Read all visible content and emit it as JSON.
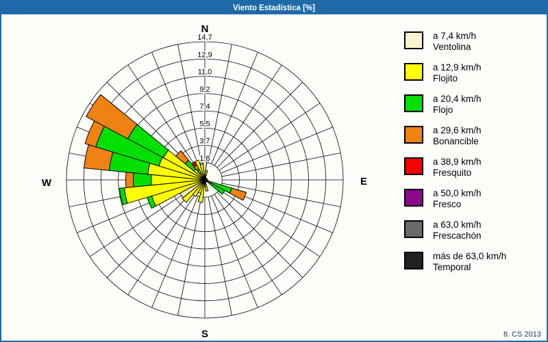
{
  "window": {
    "title": "Viento Estadística [%]"
  },
  "footer": {
    "credit": "8. CS 2013"
  },
  "legend": {
    "entries": [
      {
        "speed": "a 7,4 km/h",
        "name": "Ventolina",
        "color": "#FBF3D0"
      },
      {
        "speed": "a 12,9 km/h",
        "name": "Flojito",
        "color": "#FFFF00"
      },
      {
        "speed": "a 20,4 km/h",
        "name": "Flojo",
        "color": "#00E000"
      },
      {
        "speed": "a 29,6 km/h",
        "name": "Bonancible",
        "color": "#F08214"
      },
      {
        "speed": "a 38,9 km/h",
        "name": "Fresquito",
        "color": "#F80000"
      },
      {
        "speed": "a 50,0 km/h",
        "name": "Fresco",
        "color": "#8B0A8B"
      },
      {
        "speed": "a 63,0 km/h",
        "name": "Frescachón",
        "color": "#6A6A6A"
      },
      {
        "speed": "más de 63,0 km/h",
        "name": "Temporal",
        "color": "#212121"
      }
    ]
  },
  "chart_data": {
    "type": "wind_rose",
    "title": "Viento Estadística [%]",
    "units": "%",
    "sectors": 32,
    "sector_width_deg": 11.25,
    "grid": {
      "rings": 8,
      "ring_max": 14.7,
      "ring_labels": [
        "1,8",
        "3,7",
        "5,5",
        "7,4",
        "9,2",
        "11,0",
        "12,9",
        "14,7"
      ]
    },
    "compass": {
      "north": "N",
      "east": "E",
      "south": "S",
      "west": "W"
    },
    "speed_bins": [
      "ventolina",
      "flojito",
      "flojo",
      "bonancible",
      "fresquito",
      "fresco",
      "frescachon",
      "temporal"
    ],
    "bin_colors": {
      "ventolina": "#FBF3D0",
      "flojito": "#FFFF00",
      "flojo": "#00E000",
      "bonancible": "#F08214",
      "fresquito": "#F80000",
      "fresco": "#8B0A8B",
      "frescachon": "#6A6A6A",
      "temporal": "#212121"
    },
    "petals": [
      {
        "dir": 0.0,
        "segments": [
          2.2,
          0,
          0,
          0,
          0,
          0,
          0,
          0
        ]
      },
      {
        "dir": 11.25,
        "segments": [
          0.2,
          0.8,
          0,
          0,
          0,
          0,
          0,
          0
        ]
      },
      {
        "dir": 22.5,
        "segments": [
          0,
          0,
          0,
          0,
          0,
          0,
          0,
          0.2
        ]
      },
      {
        "dir": 33.75,
        "segments": [
          0,
          0,
          0,
          0,
          0,
          0,
          0,
          0.2
        ]
      },
      {
        "dir": 45.0,
        "segments": [
          0,
          0,
          0,
          0,
          0,
          0,
          0,
          0.25
        ]
      },
      {
        "dir": 56.25,
        "segments": [
          0,
          0,
          0,
          0,
          0,
          0,
          0,
          0.2
        ]
      },
      {
        "dir": 67.5,
        "segments": [
          0,
          0,
          0,
          0,
          0,
          0,
          0,
          0.25
        ]
      },
      {
        "dir": 78.75,
        "segments": [
          0,
          0,
          0,
          0,
          0,
          0,
          0,
          0.2
        ]
      },
      {
        "dir": 90.0,
        "segments": [
          0,
          0,
          0,
          0,
          0,
          0,
          0,
          0.3
        ]
      },
      {
        "dir": 101.25,
        "segments": [
          0,
          0,
          0,
          0,
          0,
          0,
          0,
          0.2
        ]
      },
      {
        "dir": 112.5,
        "segments": [
          0.4,
          0.3,
          2.3,
          1.6,
          0,
          0,
          0,
          0
        ]
      },
      {
        "dir": 123.75,
        "segments": [
          0.7,
          0,
          1.7,
          0,
          0,
          0,
          0,
          0
        ]
      },
      {
        "dir": 135.0,
        "segments": [
          0,
          0,
          0,
          0,
          0,
          0,
          0,
          0.2
        ]
      },
      {
        "dir": 157.5,
        "segments": [
          0,
          0,
          0,
          0,
          0,
          0,
          0,
          0.2
        ]
      },
      {
        "dir": 168.75,
        "segments": [
          0.2,
          1.0,
          0,
          0,
          0,
          0,
          0,
          0
        ]
      },
      {
        "dir": 180.0,
        "segments": [
          0.3,
          0.4,
          0,
          0,
          0,
          0,
          0,
          0
        ]
      },
      {
        "dir": 191.25,
        "segments": [
          0.3,
          2.1,
          0,
          0,
          0,
          0,
          0,
          0
        ]
      },
      {
        "dir": 202.5,
        "segments": [
          0.3,
          1.2,
          0,
          0,
          0,
          0,
          0,
          0
        ]
      },
      {
        "dir": 213.75,
        "segments": [
          0.3,
          1.7,
          0,
          0,
          0,
          0,
          0,
          0
        ]
      },
      {
        "dir": 225.0,
        "segments": [
          0.3,
          2.8,
          0,
          0,
          0,
          0,
          0,
          0
        ]
      },
      {
        "dir": 236.25,
        "segments": [
          3.0,
          0,
          0,
          0,
          0,
          0,
          0,
          0
        ]
      },
      {
        "dir": 247.5,
        "segments": [
          0.3,
          5.6,
          0.5,
          0,
          0,
          0,
          0,
          0
        ]
      },
      {
        "dir": 258.75,
        "segments": [
          0.3,
          8.3,
          0.5,
          0,
          0,
          0,
          0,
          0
        ]
      },
      {
        "dir": 270.0,
        "segments": [
          0.3,
          5.4,
          1.9,
          0.8,
          0,
          0,
          0,
          0
        ]
      },
      {
        "dir": 281.25,
        "segments": [
          0.3,
          5.8,
          4.1,
          2.7,
          0,
          0,
          0,
          0
        ]
      },
      {
        "dir": 292.5,
        "segments": [
          0.3,
          4.8,
          7.0,
          1.2,
          0,
          0,
          0,
          0
        ]
      },
      {
        "dir": 303.75,
        "segments": [
          0.3,
          4.7,
          4.3,
          5.0,
          0,
          0,
          0,
          0
        ]
      },
      {
        "dir": 315.0,
        "segments": [
          0.3,
          1.2,
          1.2,
          1.3,
          0,
          0,
          0,
          0
        ]
      },
      {
        "dir": 326.25,
        "segments": [
          0.3,
          0.5,
          0.5,
          0.5,
          0.4,
          0,
          0,
          0
        ]
      },
      {
        "dir": 337.5,
        "segments": [
          0.3,
          1.9,
          0,
          0,
          0,
          0,
          0,
          0
        ]
      },
      {
        "dir": 348.75,
        "segments": [
          0.3,
          1.4,
          0,
          0,
          0,
          0,
          0,
          0
        ]
      }
    ]
  }
}
